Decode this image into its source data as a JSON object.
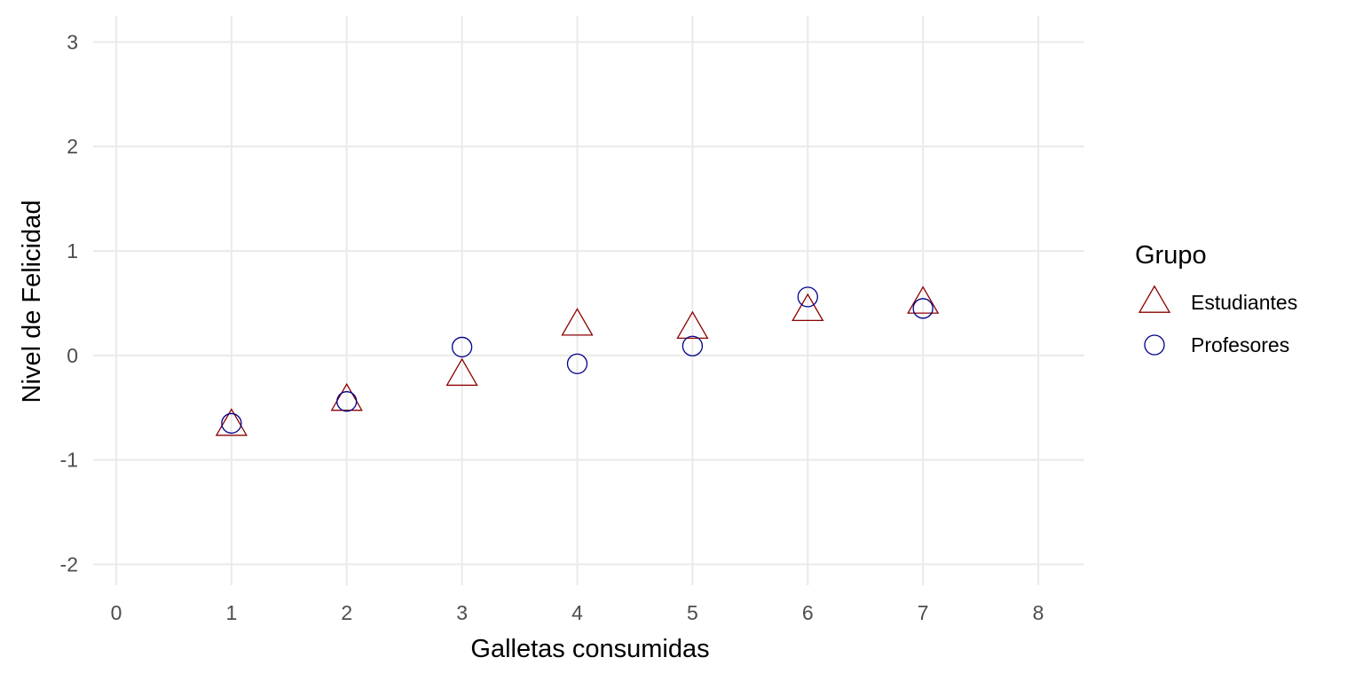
{
  "chart_data": {
    "type": "scatter",
    "xlabel": "Galletas consumidas",
    "ylabel": "Nivel de Felicidad",
    "xlim": [
      -0.2,
      8.4
    ],
    "ylim": [
      -2.2,
      3.25
    ],
    "xticks": [
      0,
      1,
      2,
      3,
      4,
      5,
      6,
      7,
      8
    ],
    "yticks": [
      -2,
      -1,
      0,
      1,
      2,
      3
    ],
    "grid": true,
    "legend": {
      "title": "Grupo",
      "placement": "right"
    },
    "series": [
      {
        "name": "Estudiantes",
        "marker": "triangle-open",
        "color": "#8b0000",
        "x": [
          1,
          2,
          3,
          4,
          5,
          6,
          7
        ],
        "y": [
          -0.67,
          -0.43,
          -0.19,
          0.29,
          0.26,
          0.43,
          0.5
        ]
      },
      {
        "name": "Profesores",
        "marker": "circle-open",
        "color": "#00008b",
        "x": [
          1,
          2,
          3,
          4,
          5,
          6,
          7
        ],
        "y": [
          -0.65,
          -0.44,
          0.08,
          -0.08,
          0.09,
          0.56,
          0.45
        ]
      }
    ]
  }
}
